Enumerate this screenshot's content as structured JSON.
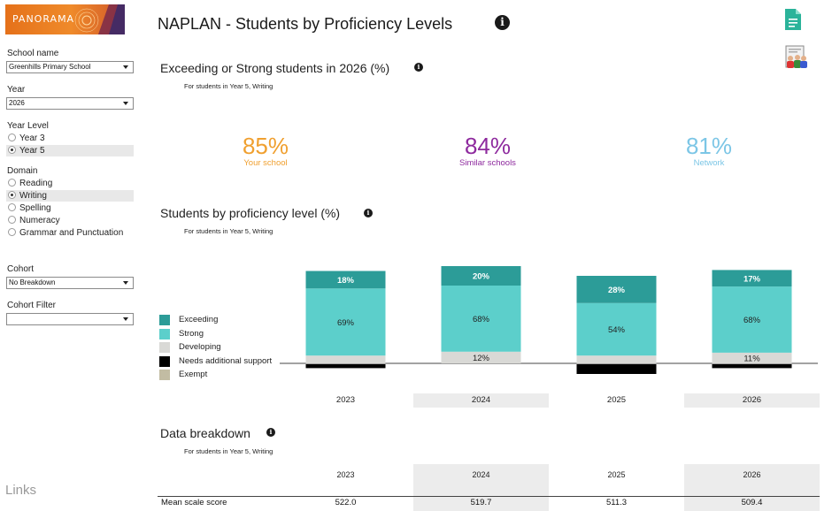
{
  "app": {
    "logo_text": "PANORAMA",
    "page_title": "NAPLAN - Students by Proficiency Levels",
    "links_label": "Links"
  },
  "filters": {
    "school_name_label": "School name",
    "school_name_value": "Greenhills Primary School",
    "year_label": "Year",
    "year_value": "2026",
    "year_level_label": "Year Level",
    "year_levels": [
      {
        "label": "Year 3",
        "selected": false
      },
      {
        "label": "Year 5",
        "selected": true
      }
    ],
    "domain_label": "Domain",
    "domains": [
      {
        "label": "Reading",
        "selected": false
      },
      {
        "label": "Writing",
        "selected": true
      },
      {
        "label": "Spelling",
        "selected": false
      },
      {
        "label": "Numeracy",
        "selected": false
      },
      {
        "label": "Grammar and Punctuation",
        "selected": false
      }
    ],
    "cohort_label": "Cohort",
    "cohort_value": "No Breakdown",
    "cohort_filter_label": "Cohort Filter",
    "cohort_filter_value": ""
  },
  "summary": {
    "title": "Exceeding or Strong students in 2026 (%)",
    "note": "For students in Year 5, Writing",
    "kpis": [
      {
        "value": "85%",
        "label": "Your school",
        "color": "#f0a030"
      },
      {
        "value": "84%",
        "label": "Similar schools",
        "color": "#8e2a9e"
      },
      {
        "value": "81%",
        "label": "Network",
        "color": "#7cc6e6"
      }
    ]
  },
  "proficiency": {
    "title": "Students by proficiency level (%)",
    "note": "For students in Year 5, Writing"
  },
  "chart_data": {
    "type": "bar",
    "stacked": true,
    "categories": [
      "2023",
      "2024",
      "2025",
      "2026"
    ],
    "series": [
      {
        "name": "Exceeding",
        "color": "#2c9c98",
        "values": [
          18,
          20,
          28,
          17
        ]
      },
      {
        "name": "Strong",
        "color": "#5ccfcb",
        "values": [
          69,
          68,
          54,
          68
        ]
      },
      {
        "name": "Developing",
        "color": "#d9d9d6",
        "values": [
          8,
          12,
          8,
          11
        ]
      },
      {
        "name": "Needs additional support",
        "color": "#000000",
        "values": [
          4,
          0,
          10,
          4
        ]
      },
      {
        "name": "Exempt",
        "color": "#c2bca3",
        "values": [
          0,
          0,
          0,
          0
        ]
      }
    ],
    "baseline_between": [
      "Developing",
      "Needs additional support"
    ],
    "labels_shown": {
      "Exceeding": [
        "18%",
        "20%",
        "28%",
        "17%"
      ],
      "Strong": [
        "69%",
        "68%",
        "54%",
        "68%"
      ],
      "Developing": [
        "",
        "12%",
        "",
        "11%"
      ]
    },
    "label_colors": {
      "Exceeding": "#ffffff",
      "Strong": "#222222",
      "Developing": "#222222"
    },
    "legend_position": "left",
    "grid": false
  },
  "breakdown": {
    "title": "Data breakdown",
    "note": "For students in Year 5, Writing",
    "years": [
      "2023",
      "2024",
      "2025",
      "2026"
    ],
    "rows": [
      {
        "label": "Mean scale score",
        "values": [
          "522.0",
          "519.7",
          "511.3",
          "509.4"
        ]
      }
    ]
  }
}
